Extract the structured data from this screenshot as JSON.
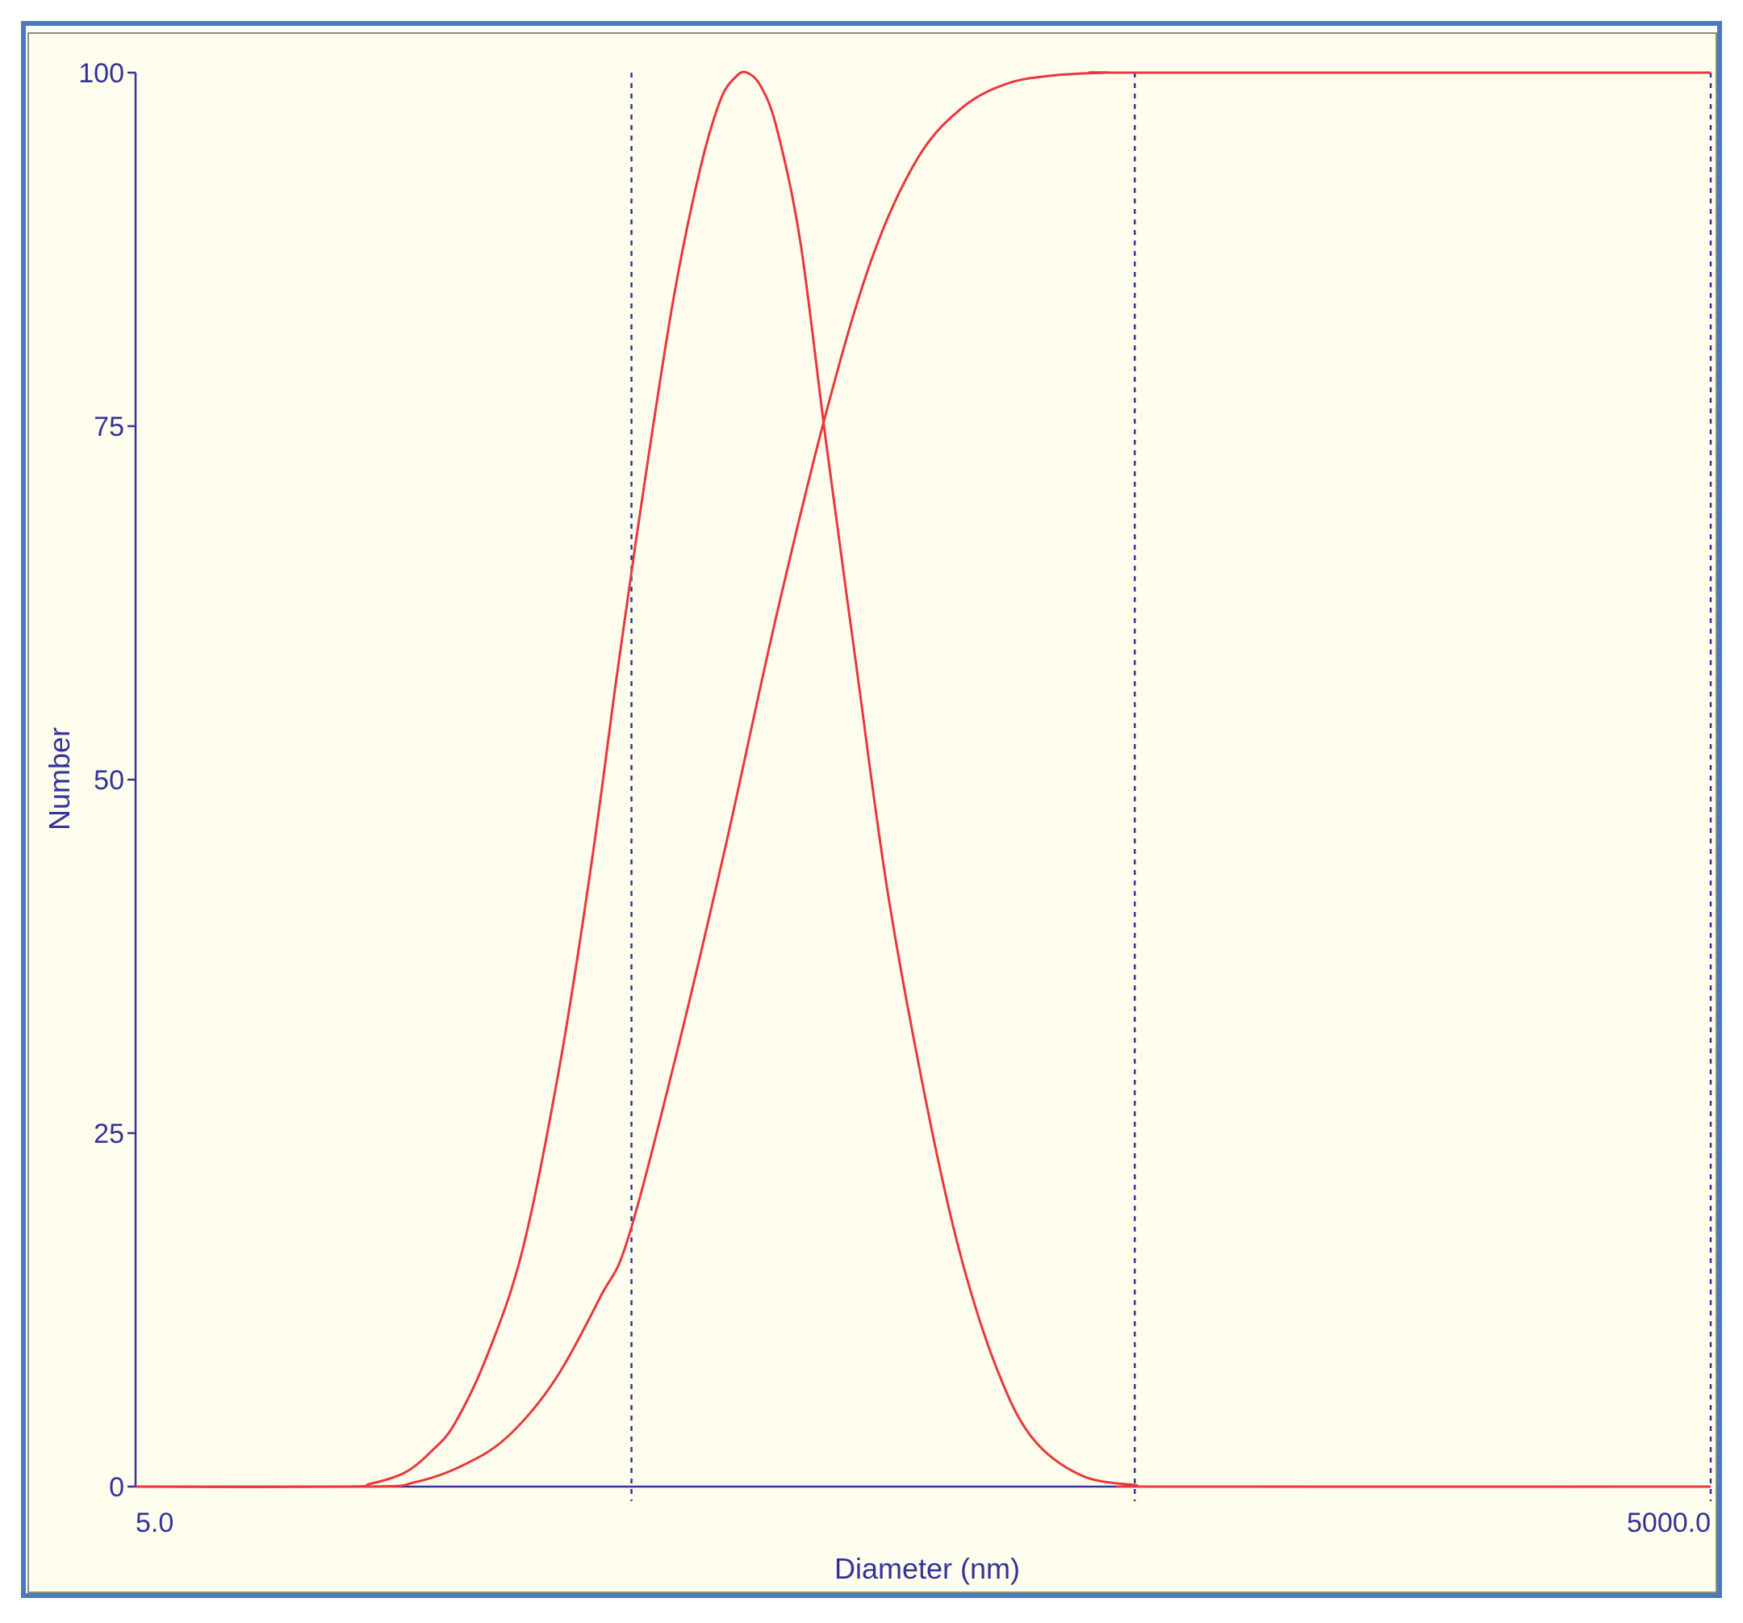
{
  "chart_data": {
    "type": "line",
    "title": "",
    "xlabel": "Diameter (nm)",
    "ylabel": "Number",
    "x_scale": "log",
    "xlim": [
      5.0,
      5000.0
    ],
    "ylim": [
      0,
      100
    ],
    "x_tick_labels": [
      "5.0",
      "5000.0"
    ],
    "y_ticks": [
      0,
      25,
      50,
      75,
      100
    ],
    "grid": false,
    "legend": "none",
    "reference_lines_x": [
      44,
      400,
      5000
    ],
    "series": [
      {
        "color": "#e8383d",
        "x": [
          5.0,
          12.4,
          14.0,
          16.3,
          18.3,
          20.3,
          23.5,
          27.4,
          32.2,
          36.9,
          41.5,
          46.6,
          52.9,
          59.3,
          64.9,
          69.5,
          73.0,
          77.7,
          83.3,
          92.3,
          103.2,
          118.0,
          135.4,
          160.6,
          185.9,
          217.6,
          254.5,
          316.0,
          401.4,
          458.1,
          5000.0
        ],
        "y": [
          0,
          0,
          0.2,
          1.0,
          2.5,
          4.5,
          9.5,
          17.0,
          30.0,
          44.0,
          58.0,
          71.0,
          84.0,
          93.0,
          98.0,
          99.7,
          100.0,
          99.0,
          96.0,
          88.0,
          74.0,
          58.0,
          42.0,
          27.0,
          16.5,
          8.5,
          3.5,
          0.8,
          0.1,
          0,
          0
        ]
      },
      {
        "color": "#e8383d",
        "x": [
          5.0,
          13.9,
          17.0,
          21.0,
          25.5,
          31.4,
          38.5,
          43.3,
          53.1,
          66.2,
          82.4,
          103.4,
          126.7,
          154.7,
          187.4,
          227.5,
          279.4,
          355.1,
          408.4,
          5000.0
        ],
        "y": [
          0,
          0,
          0.3,
          1.5,
          3.5,
          7.5,
          13.5,
          17.5,
          30.0,
          45.0,
          61.0,
          76.0,
          87.0,
          94.0,
          97.5,
          99.2,
          99.8,
          100.0,
          100.0,
          100.0
        ]
      }
    ]
  }
}
